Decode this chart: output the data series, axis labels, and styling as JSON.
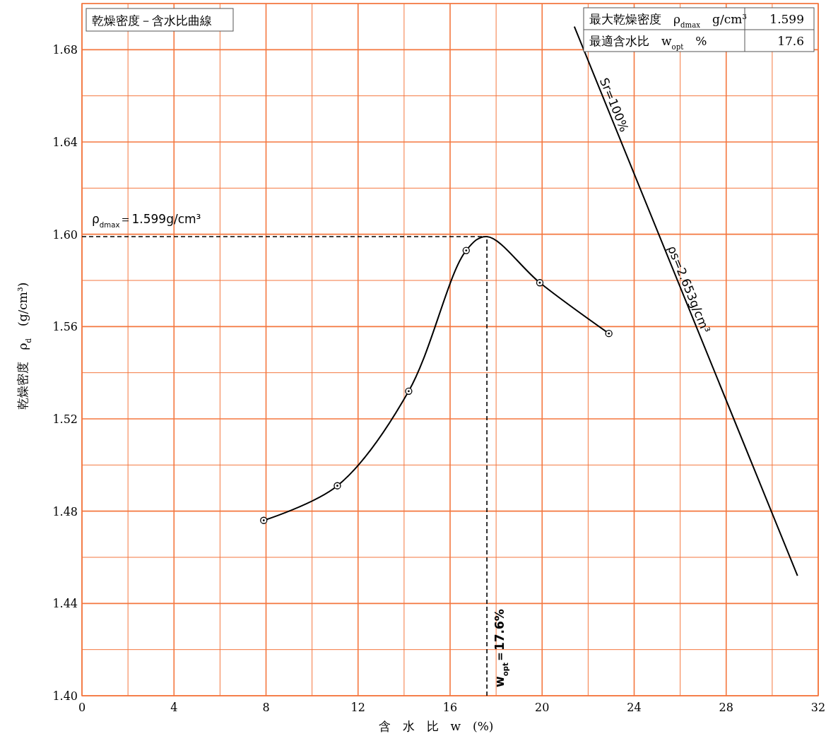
{
  "chart_data": {
    "type": "line",
    "title": "乾燥密度－含水比曲線",
    "xlabel": "含　水　比　w　(%)",
    "ylabel": "乾燥密度　ρ$_{d}$　(g/cm³)",
    "xlim": [
      0,
      32
    ],
    "ylim": [
      1.4,
      1.7
    ],
    "xticks": [
      0,
      {
        "value": 2,
        "label": null
      },
      4,
      {
        "value": 6,
        "label": null
      },
      8,
      {
        "value": 10,
        "label": null
      },
      12,
      {
        "value": 14,
        "label": null
      },
      16,
      {
        "value": 18,
        "label": null
      },
      20,
      {
        "value": 22,
        "label": null
      },
      24,
      {
        "value": 26,
        "label": null
      },
      28,
      {
        "value": 30,
        "label": null
      },
      32
    ],
    "yticks": [
      {
        "value": 1.4,
        "label": "1.40"
      },
      {
        "value": 1.42,
        "label": null
      },
      1.44,
      {
        "value": 1.46,
        "label": null
      },
      1.48,
      {
        "value": 1.5,
        "label": null
      },
      1.52,
      {
        "value": 1.54,
        "label": null
      },
      1.56,
      {
        "value": 1.58,
        "label": null
      },
      {
        "value": 1.6,
        "label": "1.60"
      },
      {
        "value": 1.62,
        "label": null
      },
      1.64,
      {
        "value": 1.66,
        "label": null
      },
      1.68,
      {
        "value": 1.7,
        "label": null
      }
    ],
    "grid": true,
    "series": [
      {
        "color": "#000000",
        "marker": "none",
        "x": [
          7.9,
          11.1,
          14.2,
          16.7,
          17.6,
          19.9,
          22.9
        ],
        "values": [
          1.476,
          1.491,
          1.532,
          1.593,
          1.599,
          1.579,
          1.557
        ]
      },
      {
        "type": "scatter",
        "color": "#000000",
        "marker": "circle",
        "x": [
          7.9,
          11.1,
          14.2,
          16.7,
          19.9,
          22.9
        ],
        "values": [
          1.476,
          1.491,
          1.532,
          1.593,
          1.579,
          1.557
        ]
      },
      {
        "type": "line",
        "color": "#000000",
        "marker": "none",
        "x": [
          21.4,
          31.1
        ],
        "values": [
          1.69,
          1.452
        ]
      }
    ],
    "ref_lines": [
      {
        "axis": "y",
        "value": 1.599,
        "label": "ρ$_{dmax}$＝1.599g/cm³",
        "line_style": "dashed",
        "color": "#000000"
      },
      {
        "axis": "x",
        "value": 17.6,
        "label": "w$_{opt}$＝17.6%",
        "line_style": "dashed",
        "color": "#000000"
      }
    ],
    "annotations": [
      {
        "text": "Sr=100%",
        "x": 22.85,
        "y": 1.655
      },
      {
        "text": "ρs=2.653g/cm³",
        "x": 26.1,
        "y": 1.575
      },
      "最大乾燥密度　ρ$_{dmax}$　g/cm³",
      "1.599",
      "最適含水比　w$_{opt}$　%",
      "17.6"
    ]
  }
}
